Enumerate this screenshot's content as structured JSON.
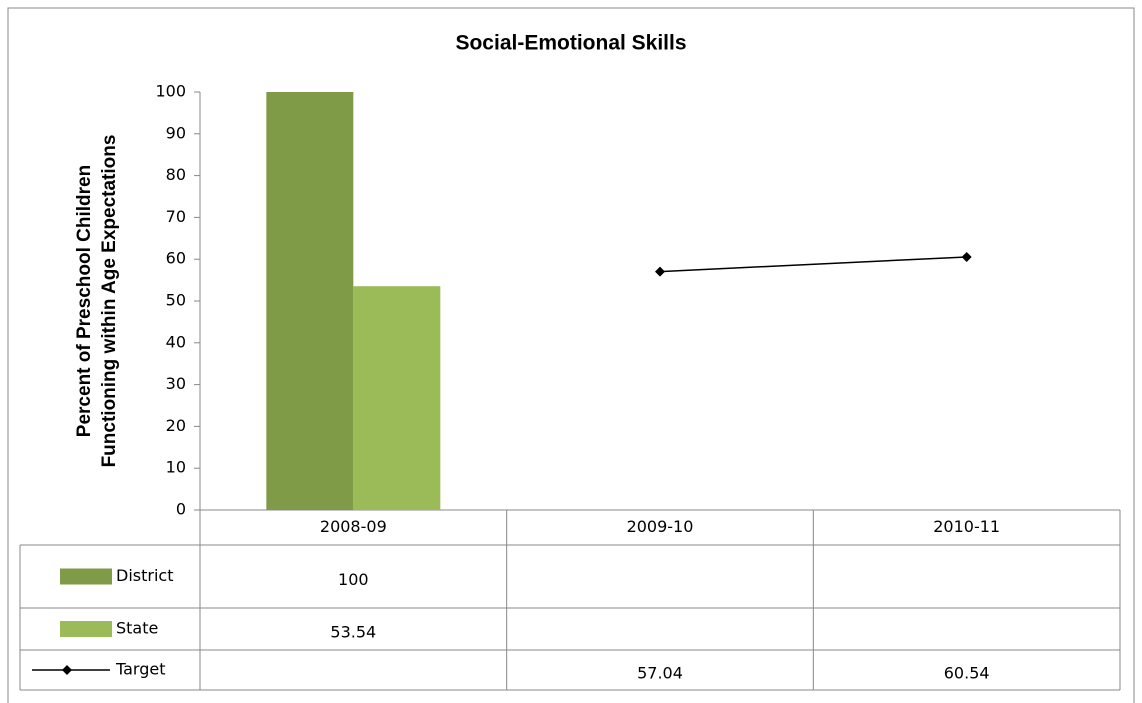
{
  "chart_data": {
    "type": "bar",
    "title": "Social-Emotional Skills",
    "ylabel": [
      "Percent of Preschool Children",
      "Functioning within Age Expectations"
    ],
    "categories": [
      "2008-09",
      "2009-10",
      "2010-11"
    ],
    "series": [
      {
        "name": "District",
        "type": "bar",
        "color": "#7f9b47",
        "values": [
          100,
          null,
          null
        ]
      },
      {
        "name": "State",
        "type": "bar",
        "color": "#9bbb59",
        "values": [
          53.54,
          null,
          null
        ]
      },
      {
        "name": "Target",
        "type": "line",
        "color": "#000000",
        "values": [
          null,
          57.04,
          60.54
        ]
      }
    ],
    "ylim": [
      0,
      100
    ],
    "yticks": [
      0,
      10,
      20,
      30,
      40,
      50,
      60,
      70,
      80,
      90,
      100
    ]
  }
}
